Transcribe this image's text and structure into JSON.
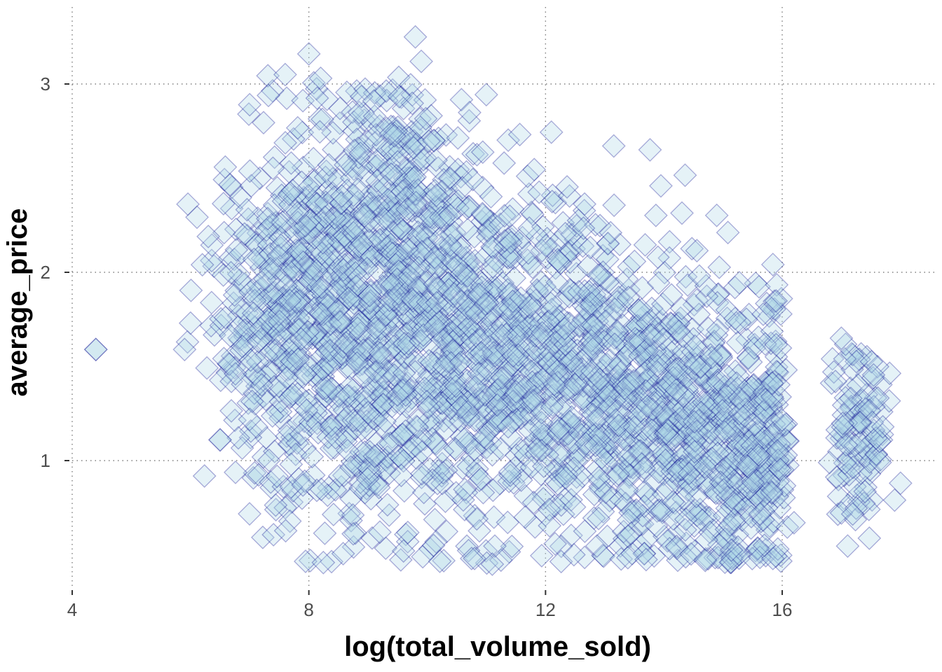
{
  "chart_data": {
    "type": "scatter",
    "title": "",
    "xlabel": "log(total_volume_sold)",
    "ylabel": "average_price",
    "xlim": [
      4,
      18.7
    ],
    "ylim": [
      0.3,
      3.35
    ],
    "x_ticks": [
      4,
      8,
      12,
      16
    ],
    "y_ticks": [
      1,
      2,
      3
    ],
    "grid": true,
    "legend": "none",
    "marker": "diamond",
    "colors": {
      "fill": "#add8e6",
      "stroke": "#00008b"
    },
    "clusters": [
      {
        "x": 4.4,
        "y": 1.59,
        "n": 1,
        "sx": 0,
        "sy": 0
      },
      {
        "x": 6.5,
        "y": 1.11,
        "n": 1,
        "sx": 0,
        "sy": 0
      },
      {
        "x": 7.5,
        "y": 1.85,
        "n": 320,
        "sx": 0.6,
        "sy": 0.45
      },
      {
        "x": 8.6,
        "y": 1.75,
        "n": 460,
        "sx": 0.7,
        "sy": 0.55
      },
      {
        "x": 9.6,
        "y": 2.35,
        "n": 240,
        "sx": 0.6,
        "sy": 0.35
      },
      {
        "x": 10.4,
        "y": 1.6,
        "n": 480,
        "sx": 0.9,
        "sy": 0.5
      },
      {
        "x": 11.8,
        "y": 1.55,
        "n": 420,
        "sx": 0.9,
        "sy": 0.45
      },
      {
        "x": 13.3,
        "y": 1.35,
        "n": 380,
        "sx": 0.8,
        "sy": 0.4
      },
      {
        "x": 14.6,
        "y": 1.15,
        "n": 320,
        "sx": 0.7,
        "sy": 0.38
      },
      {
        "x": 15.5,
        "y": 1.05,
        "n": 240,
        "sx": 0.45,
        "sy": 0.35
      },
      {
        "x": 17.3,
        "y": 1.12,
        "n": 110,
        "sx": 0.3,
        "sy": 0.22
      }
    ],
    "points": [
      {
        "x": 4.4,
        "y": 1.59
      },
      {
        "x": 6.5,
        "y": 1.11
      },
      {
        "x": 6.0,
        "y": 1.73
      },
      {
        "x": 5.9,
        "y": 1.59
      },
      {
        "x": 6.2,
        "y": 2.04
      },
      {
        "x": 6.3,
        "y": 2.19
      },
      {
        "x": 8.0,
        "y": 3.16
      },
      {
        "x": 9.8,
        "y": 3.25
      },
      {
        "x": 7.6,
        "y": 3.05
      },
      {
        "x": 7.0,
        "y": 2.89
      },
      {
        "x": 8.2,
        "y": 3.03
      },
      {
        "x": 9.9,
        "y": 3.12
      },
      {
        "x": 11.3,
        "y": 2.58
      },
      {
        "x": 13.1,
        "y": 2.21
      },
      {
        "x": 13.9,
        "y": 2.08
      },
      {
        "x": 14.6,
        "y": 1.98
      },
      {
        "x": 16.9,
        "y": 1.42
      },
      {
        "x": 17.0,
        "y": 1.65
      },
      {
        "x": 17.9,
        "y": 0.79
      },
      {
        "x": 18.0,
        "y": 0.88
      },
      {
        "x": 16.8,
        "y": 0.99
      },
      {
        "x": 11.1,
        "y": 0.45
      },
      {
        "x": 10.8,
        "y": 0.48
      },
      {
        "x": 9.6,
        "y": 0.52
      },
      {
        "x": 14.7,
        "y": 0.47
      },
      {
        "x": 15.7,
        "y": 0.55
      },
      {
        "x": 7.7,
        "y": 0.86
      },
      {
        "x": 7.9,
        "y": 0.87
      },
      {
        "x": 9.2,
        "y": 0.62
      },
      {
        "x": 16.2,
        "y": 0.67
      }
    ]
  }
}
